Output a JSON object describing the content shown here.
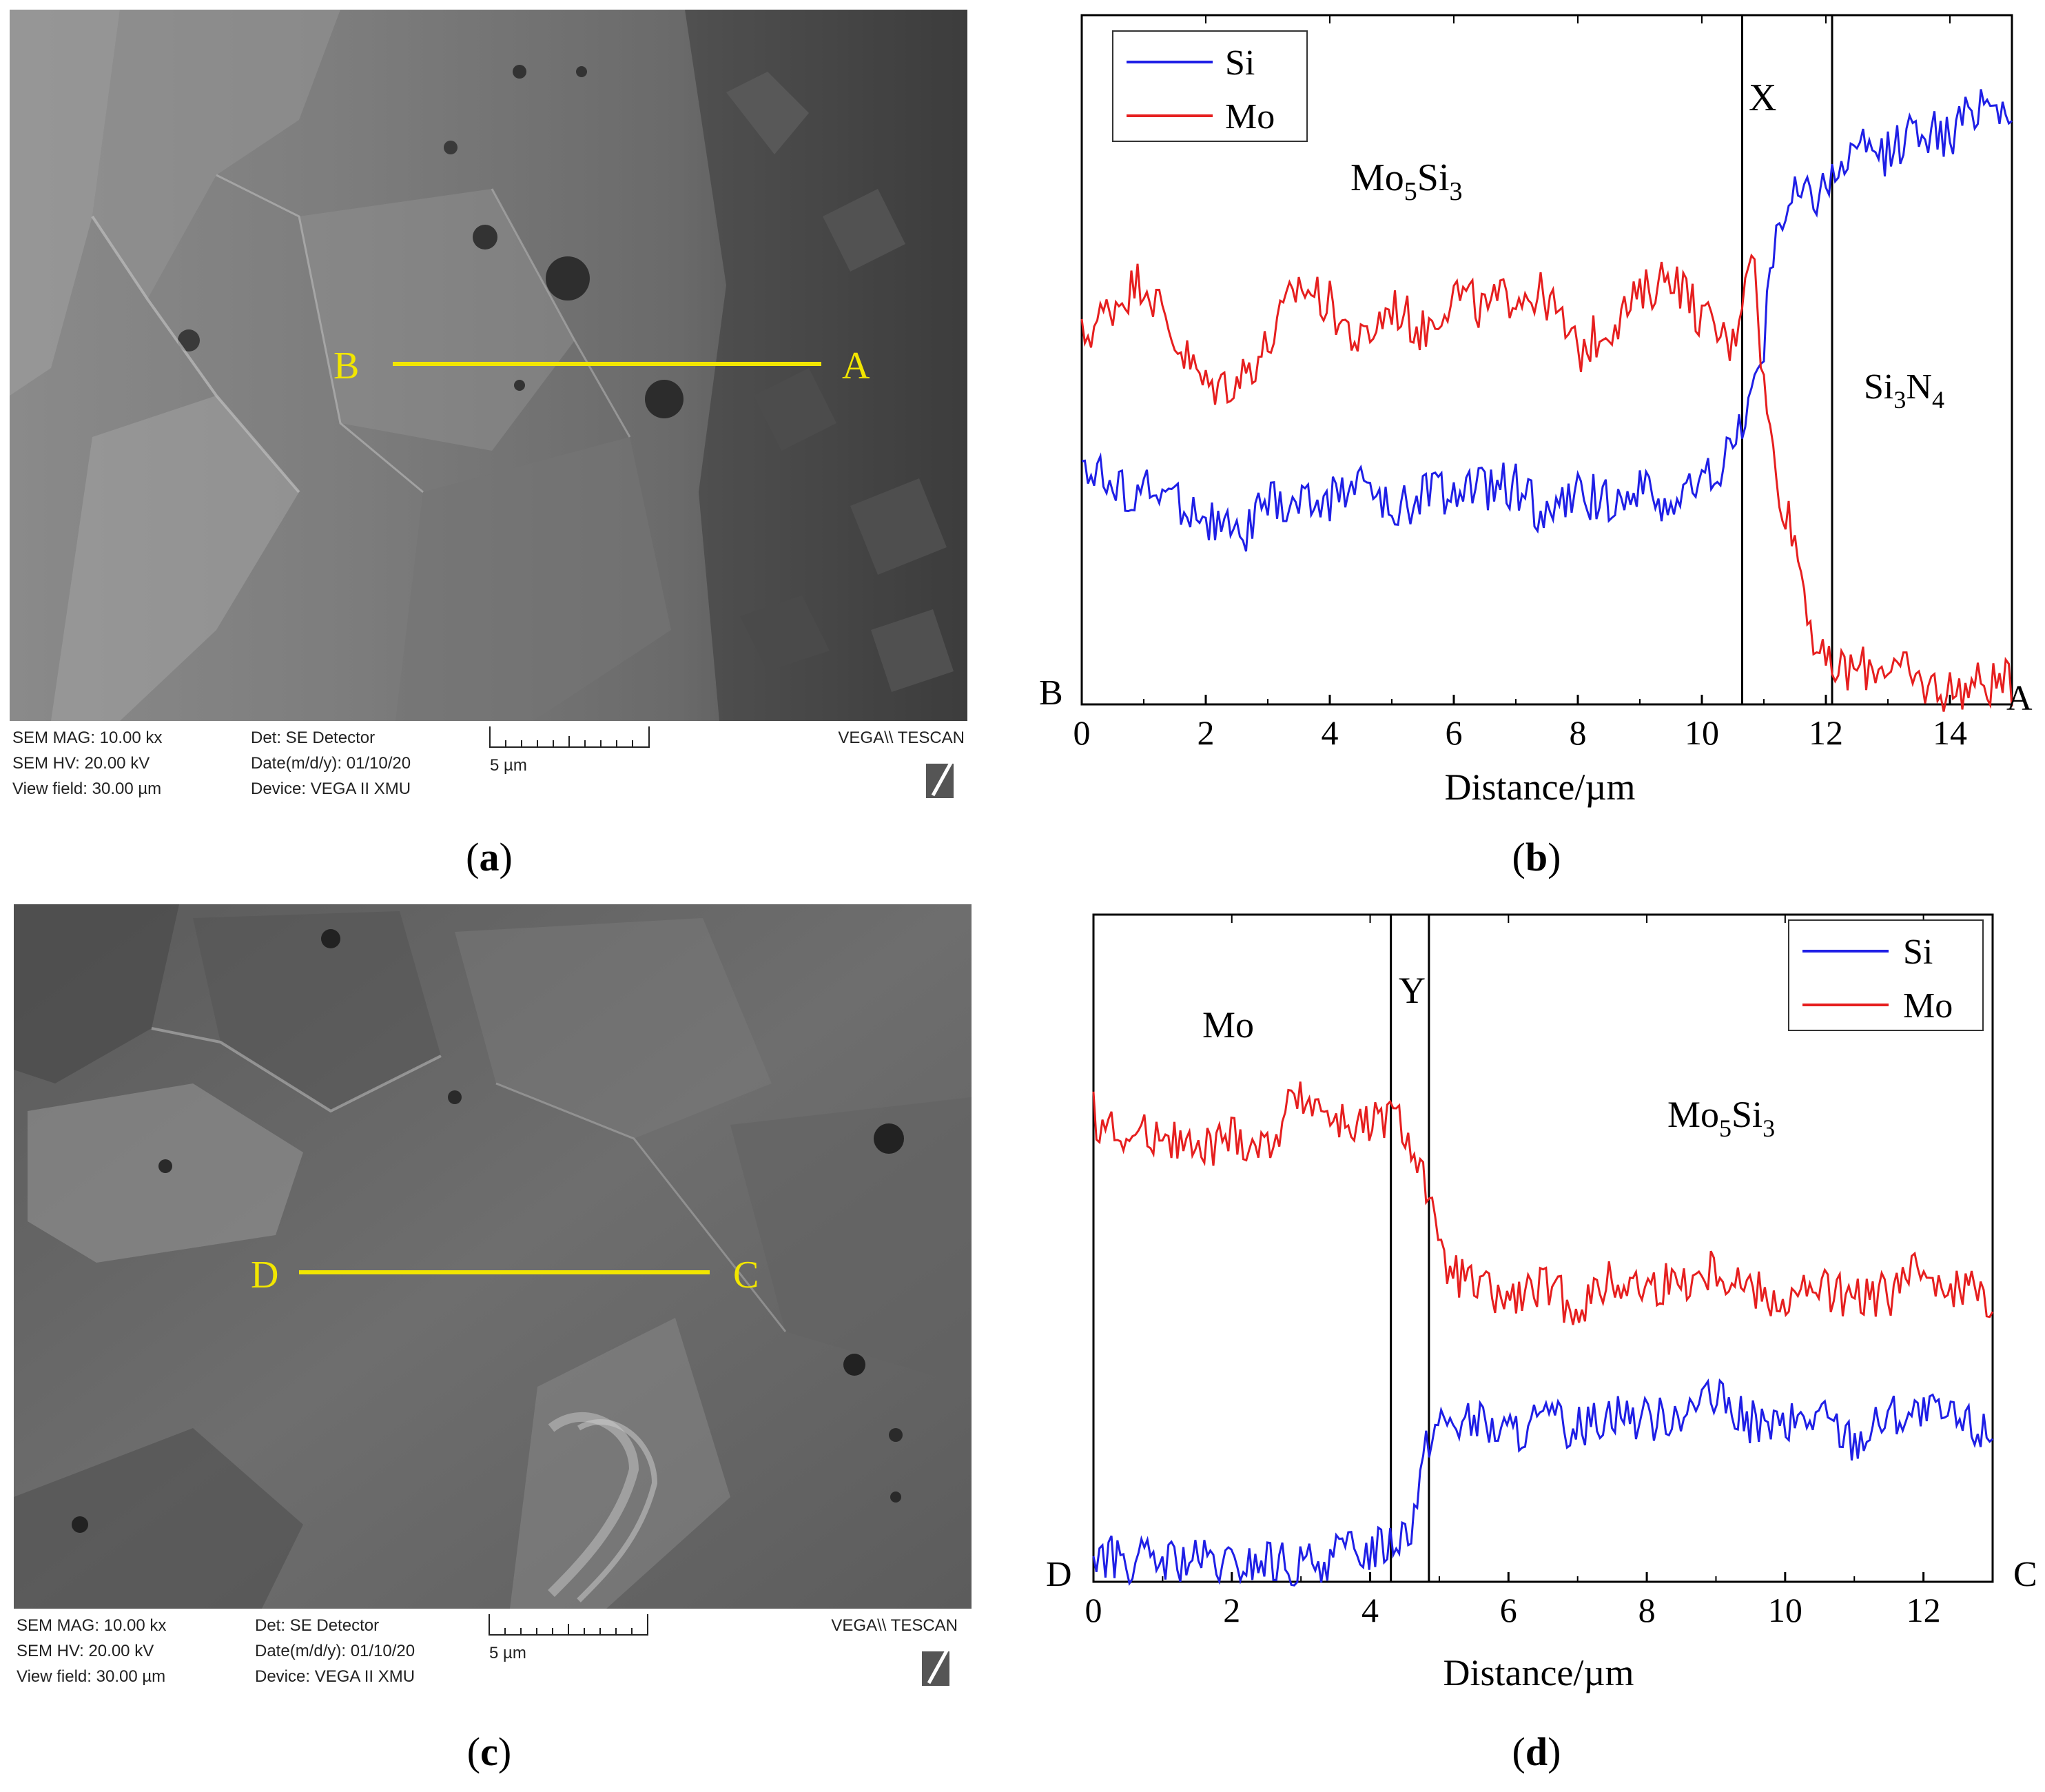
{
  "panels": {
    "a": {
      "caption": "a",
      "line_label_left": "B",
      "line_label_right": "A",
      "sem_info": {
        "mag": "SEM MAG: 10.00 kx",
        "hv": "SEM HV: 20.00 kV",
        "view": "View field: 30.00 µm",
        "det": "Det: SE Detector",
        "date": "Date(m/d/y): 01/10/20",
        "device": "Device: VEGA II XMU",
        "scale": "5 µm",
        "brand": "VEGA\\\\ TESCAN"
      }
    },
    "b": {
      "caption": "b",
      "legend": [
        "Si",
        "Mo"
      ],
      "region_labels": {
        "left": "Mo",
        "left_sub1": "5",
        "left_mid": "Si",
        "left_sub2": "3",
        "interface": "X",
        "right_a": "Si",
        "right_sub1": "3",
        "right_b": "N",
        "right_sub2": "4"
      },
      "end_left": "B",
      "end_right": "A",
      "xlabel": "Distance/µm",
      "ticks": [
        "0",
        "2",
        "4",
        "6",
        "8",
        "10",
        "12",
        "14"
      ]
    },
    "c": {
      "caption": "c",
      "line_label_left": "D",
      "line_label_right": "C",
      "sem_info": {
        "mag": "SEM MAG: 10.00 kx",
        "hv": "SEM HV: 20.00 kV",
        "view": "View field: 30.00 µm",
        "det": "Det: SE Detector",
        "date": "Date(m/d/y): 01/10/20",
        "device": "Device: VEGA II XMU",
        "scale": "5 µm",
        "brand": "VEGA\\\\ TESCAN"
      }
    },
    "d": {
      "caption": "d",
      "legend": [
        "Si",
        "Mo"
      ],
      "region_labels": {
        "left": "Mo",
        "interface": "Y",
        "right_a": "Mo",
        "right_sub1": "5",
        "right_b": "Si",
        "right_sub2": "3"
      },
      "end_left": "D",
      "end_right": "C",
      "xlabel": "Distance/µm",
      "ticks": [
        "0",
        "2",
        "4",
        "6",
        "8",
        "10",
        "12"
      ]
    }
  },
  "colors": {
    "si": "#1f1fe6",
    "mo": "#e61f1f",
    "marker": "#f2e600"
  },
  "chart_data": [
    {
      "type": "line",
      "panel": "b",
      "xlabel": "Distance/µm",
      "xlim": [
        0,
        15
      ],
      "interface_bounds": [
        10.65,
        12.1
      ],
      "series": [
        {
          "name": "Si",
          "x": [
            0,
            0.5,
            1,
            1.5,
            2,
            2.5,
            3,
            3.5,
            4,
            4.5,
            5,
            5.5,
            6,
            6.5,
            7,
            7.5,
            8,
            8.5,
            9,
            9.5,
            10,
            10.5,
            10.8,
            11,
            11.2,
            11.5,
            11.8,
            12,
            12.5,
            13,
            13.5,
            14,
            14.5,
            15
          ],
          "y": [
            0.36,
            0.31,
            0.31,
            0.3,
            0.27,
            0.24,
            0.29,
            0.29,
            0.3,
            0.33,
            0.27,
            0.31,
            0.31,
            0.31,
            0.32,
            0.27,
            0.3,
            0.3,
            0.31,
            0.29,
            0.32,
            0.37,
            0.45,
            0.52,
            0.7,
            0.74,
            0.74,
            0.76,
            0.8,
            0.8,
            0.84,
            0.82,
            0.88,
            0.86
          ]
        },
        {
          "name": "Mo",
          "x": [
            0,
            0.5,
            1,
            1.5,
            2,
            2.5,
            3,
            3.5,
            4,
            4.5,
            5,
            5.5,
            6,
            6.5,
            7,
            7.5,
            8,
            8.5,
            9,
            9.5,
            10,
            10.5,
            10.8,
            11,
            11.2,
            11.5,
            11.8,
            12,
            12.5,
            13,
            13.5,
            14,
            14.5,
            15
          ],
          "y": [
            0.53,
            0.58,
            0.62,
            0.53,
            0.46,
            0.47,
            0.52,
            0.61,
            0.58,
            0.52,
            0.58,
            0.54,
            0.6,
            0.57,
            0.6,
            0.59,
            0.51,
            0.55,
            0.59,
            0.63,
            0.56,
            0.52,
            0.68,
            0.46,
            0.33,
            0.24,
            0.1,
            0.05,
            0.05,
            0.06,
            0.03,
            0.02,
            0.03,
            0.03
          ]
        }
      ]
    },
    {
      "type": "line",
      "panel": "d",
      "xlabel": "Distance/µm",
      "xlim": [
        0,
        13
      ],
      "interface_bounds": [
        4.3,
        4.85
      ],
      "series": [
        {
          "name": "Si",
          "x": [
            0,
            0.5,
            1,
            1.5,
            2,
            2.5,
            3,
            3.5,
            4,
            4.3,
            4.6,
            4.85,
            5,
            5.5,
            6,
            6.5,
            7,
            7.5,
            8,
            8.5,
            9,
            9.5,
            10,
            10.5,
            11,
            11.5,
            12,
            12.5,
            13
          ],
          "y": [
            0.04,
            0.03,
            0.03,
            0.03,
            0.02,
            0.03,
            0.02,
            0.04,
            0.05,
            0.06,
            0.09,
            0.22,
            0.24,
            0.24,
            0.22,
            0.24,
            0.23,
            0.26,
            0.24,
            0.26,
            0.27,
            0.24,
            0.23,
            0.25,
            0.21,
            0.25,
            0.25,
            0.24,
            0.22
          ]
        },
        {
          "name": "Mo",
          "x": [
            0,
            0.5,
            1,
            1.5,
            2,
            2.5,
            3,
            3.5,
            4,
            4.3,
            4.6,
            4.85,
            5,
            5.5,
            6,
            6.5,
            7,
            7.5,
            8,
            8.5,
            9,
            9.5,
            10,
            10.5,
            11,
            11.5,
            12,
            12.5,
            13
          ],
          "y": [
            0.7,
            0.66,
            0.68,
            0.64,
            0.67,
            0.65,
            0.74,
            0.69,
            0.68,
            0.7,
            0.66,
            0.58,
            0.48,
            0.44,
            0.42,
            0.44,
            0.41,
            0.45,
            0.44,
            0.45,
            0.47,
            0.44,
            0.42,
            0.44,
            0.42,
            0.43,
            0.47,
            0.44,
            0.43
          ]
        }
      ]
    }
  ]
}
